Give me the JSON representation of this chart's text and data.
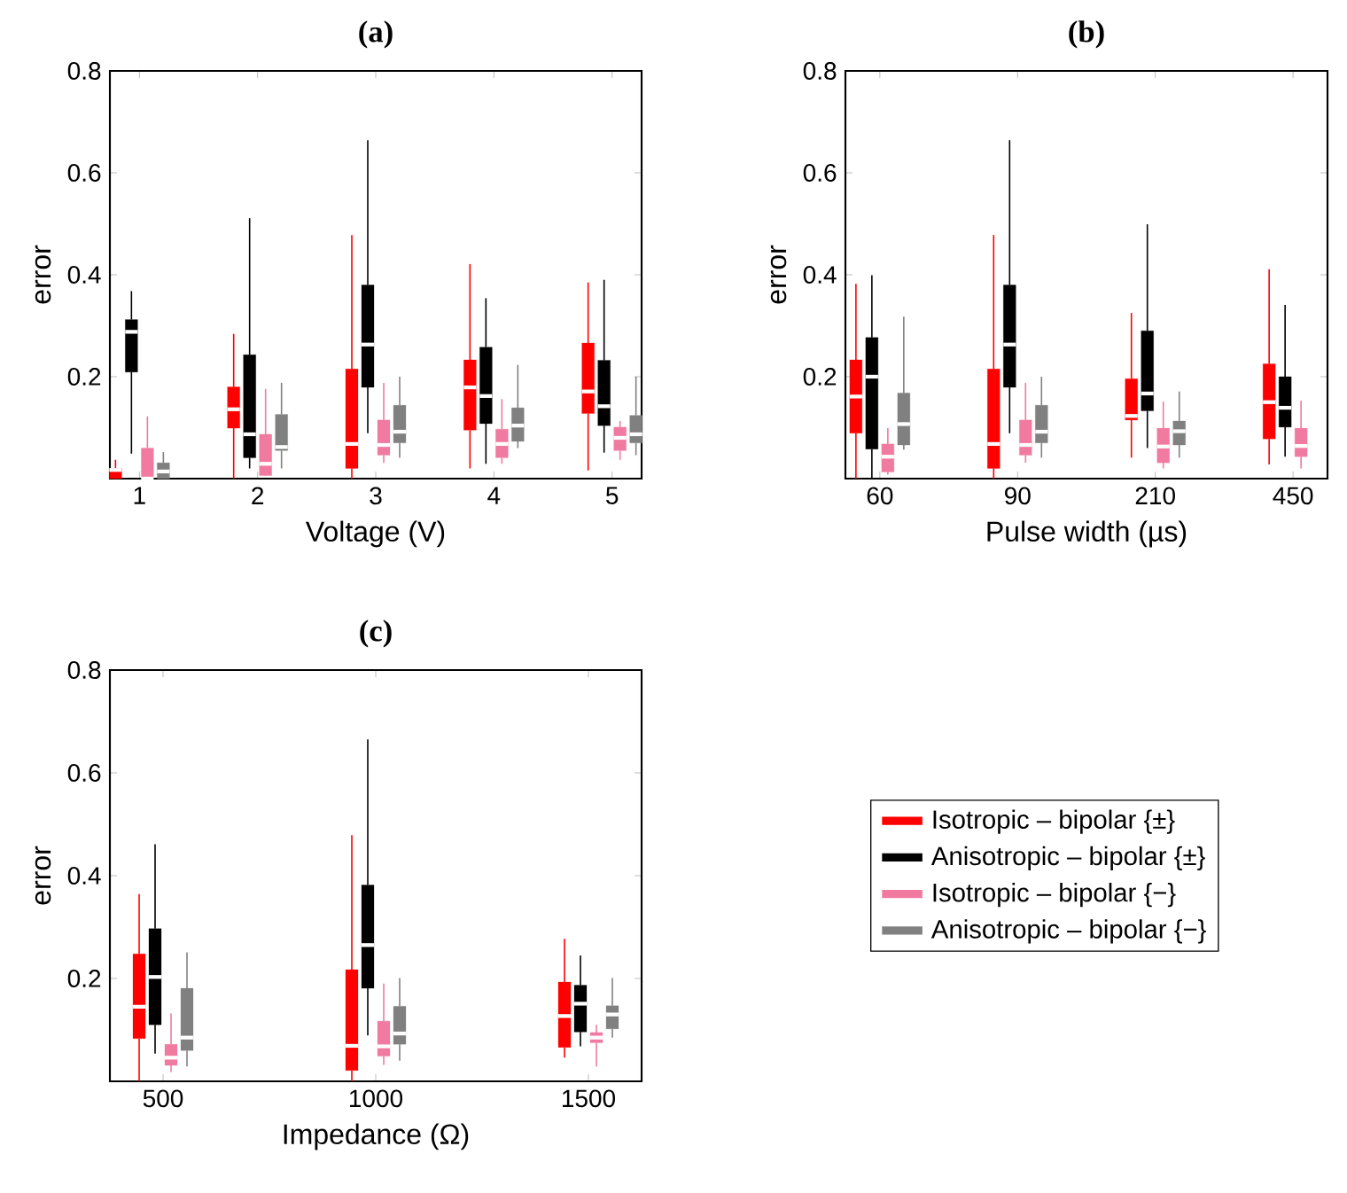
{
  "chart_data": [
    {
      "type": "box",
      "title": "(a)",
      "xlabel": "Voltage (V)",
      "ylabel": "error",
      "categories": [
        "1",
        "2",
        "3",
        "4",
        "5"
      ],
      "ylim": [
        0,
        0.8
      ],
      "yticks": [
        0.2,
        0.4,
        0.6,
        0.8
      ],
      "series": [
        {
          "color": "#ff0000",
          "boxes": [
            {
              "low": 0,
              "q1": 0,
              "median": 0.017,
              "q3": 0.02,
              "high": 0.037
            },
            {
              "low": 0,
              "q1": 0.099,
              "median": 0.136,
              "q3": 0.18,
              "high": 0.284
            },
            {
              "low": 0,
              "q1": 0.02,
              "median": 0.068,
              "q3": 0.215,
              "high": 0.478
            },
            {
              "low": 0.02,
              "q1": 0.095,
              "median": 0.179,
              "q3": 0.233,
              "high": 0.421
            },
            {
              "low": 0.016,
              "q1": 0.128,
              "median": 0.171,
              "q3": 0.266,
              "high": 0.385
            }
          ]
        },
        {
          "color": "#000000",
          "boxes": [
            {
              "low": 0.049,
              "q1": 0.209,
              "median": 0.288,
              "q3": 0.312,
              "high": 0.368
            },
            {
              "low": 0.02,
              "q1": 0.041,
              "median": 0.087,
              "q3": 0.243,
              "high": 0.511
            },
            {
              "low": 0.089,
              "q1": 0.179,
              "median": 0.263,
              "q3": 0.38,
              "high": 0.664
            },
            {
              "low": 0.029,
              "q1": 0.108,
              "median": 0.162,
              "q3": 0.258,
              "high": 0.354
            },
            {
              "low": 0.051,
              "q1": 0.104,
              "median": 0.142,
              "q3": 0.232,
              "high": 0.39
            }
          ]
        },
        {
          "color": "#f07aa0",
          "boxes": [
            {
              "low": 0,
              "q1": 0,
              "median": 0,
              "q3": 0.06,
              "high": 0.122
            },
            {
              "low": 0.005,
              "q1": 0.006,
              "median": 0.029,
              "q3": 0.087,
              "high": 0.176
            },
            {
              "low": 0.031,
              "q1": 0.046,
              "median": 0.066,
              "q3": 0.115,
              "high": 0.188
            },
            {
              "low": 0.029,
              "q1": 0.041,
              "median": 0.068,
              "q3": 0.097,
              "high": 0.156
            },
            {
              "low": 0.037,
              "q1": 0.055,
              "median": 0.08,
              "q3": 0.101,
              "high": 0.113
            }
          ]
        },
        {
          "color": "#808080",
          "boxes": [
            {
              "low": 0,
              "q1": 0,
              "median": 0.014,
              "q3": 0.031,
              "high": 0.052
            },
            {
              "low": 0.02,
              "q1": 0.055,
              "median": 0.062,
              "q3": 0.126,
              "high": 0.188
            },
            {
              "low": 0.041,
              "q1": 0.07,
              "median": 0.092,
              "q3": 0.144,
              "high": 0.2
            },
            {
              "low": 0.06,
              "q1": 0.073,
              "median": 0.104,
              "q3": 0.139,
              "high": 0.223
            },
            {
              "low": 0.046,
              "q1": 0.07,
              "median": 0.087,
              "q3": 0.124,
              "high": 0.2
            }
          ]
        }
      ]
    },
    {
      "type": "box",
      "title": "(b)",
      "xlabel": "Pulse width (µs)",
      "ylabel": "error",
      "categories": [
        "60",
        "90",
        "210",
        "450"
      ],
      "ylim": [
        0,
        0.8
      ],
      "yticks": [
        0.2,
        0.4,
        0.6,
        0.8
      ],
      "series": [
        {
          "color": "#ff0000",
          "boxes": [
            {
              "low": 0,
              "q1": 0.089,
              "median": 0.161,
              "q3": 0.233,
              "high": 0.382
            },
            {
              "low": 0,
              "q1": 0.02,
              "median": 0.068,
              "q3": 0.215,
              "high": 0.478
            },
            {
              "low": 0.041,
              "q1": 0.115,
              "median": 0.123,
              "q3": 0.196,
              "high": 0.325
            },
            {
              "low": 0.028,
              "q1": 0.078,
              "median": 0.15,
              "q3": 0.225,
              "high": 0.411
            }
          ]
        },
        {
          "color": "#000000",
          "boxes": [
            {
              "low": 0,
              "q1": 0.058,
              "median": 0.2,
              "q3": 0.277,
              "high": 0.399
            },
            {
              "low": 0.089,
              "q1": 0.179,
              "median": 0.263,
              "q3": 0.38,
              "high": 0.664
            },
            {
              "low": 0.06,
              "q1": 0.133,
              "median": 0.167,
              "q3": 0.29,
              "high": 0.499
            },
            {
              "low": 0.043,
              "q1": 0.101,
              "median": 0.139,
              "q3": 0.2,
              "high": 0.341
            }
          ]
        },
        {
          "color": "#f07aa0",
          "boxes": [
            {
              "low": 0.008,
              "q1": 0.013,
              "median": 0.043,
              "q3": 0.068,
              "high": 0.099
            },
            {
              "low": 0.031,
              "q1": 0.046,
              "median": 0.066,
              "q3": 0.115,
              "high": 0.188
            },
            {
              "low": 0.02,
              "q1": 0.031,
              "median": 0.063,
              "q3": 0.099,
              "high": 0.151
            },
            {
              "low": 0.02,
              "q1": 0.043,
              "median": 0.064,
              "q3": 0.099,
              "high": 0.153
            }
          ]
        },
        {
          "color": "#808080",
          "boxes": [
            {
              "low": 0.057,
              "q1": 0.066,
              "median": 0.107,
              "q3": 0.168,
              "high": 0.318
            },
            {
              "low": 0.041,
              "q1": 0.07,
              "median": 0.092,
              "q3": 0.144,
              "high": 0.2
            },
            {
              "low": 0.041,
              "q1": 0.066,
              "median": 0.093,
              "q3": 0.113,
              "high": 0.171
            },
            null
          ]
        }
      ]
    },
    {
      "type": "box",
      "title": "(c)",
      "xlabel": "Impedance (Ω)",
      "ylabel": "error",
      "categories": [
        "500",
        "1000",
        "1500"
      ],
      "ylim": [
        0,
        0.8
      ],
      "yticks": [
        0.2,
        0.4,
        0.6,
        0.8
      ],
      "legend": "right",
      "series": [
        {
          "name": "Isotropic – bipolar {±}",
          "color": "#ff0000",
          "boxes": [
            {
              "low": 0,
              "q1": 0.083,
              "median": 0.145,
              "q3": 0.248,
              "high": 0.364
            },
            {
              "low": 0,
              "q1": 0.021,
              "median": 0.069,
              "q3": 0.217,
              "high": 0.479
            },
            {
              "low": 0.046,
              "q1": 0.066,
              "median": 0.127,
              "q3": 0.193,
              "high": 0.277
            }
          ]
        },
        {
          "name": "Anisotropic – bipolar {±}",
          "color": "#000000",
          "boxes": [
            {
              "low": 0.054,
              "q1": 0.11,
              "median": 0.203,
              "q3": 0.297,
              "high": 0.461
            },
            {
              "low": 0.089,
              "q1": 0.181,
              "median": 0.265,
              "q3": 0.382,
              "high": 0.665
            },
            {
              "low": 0.068,
              "q1": 0.096,
              "median": 0.151,
              "q3": 0.187,
              "high": 0.245
            }
          ]
        },
        {
          "name": "Isotropic – bipolar {−}",
          "color": "#f07aa0",
          "boxes": [
            {
              "low": 0.018,
              "q1": 0.031,
              "median": 0.046,
              "q3": 0.072,
              "high": 0.132
            },
            {
              "low": 0.032,
              "q1": 0.049,
              "median": 0.068,
              "q3": 0.117,
              "high": 0.19
            },
            {
              "low": 0.029,
              "q1": 0.075,
              "median": 0.085,
              "q3": 0.095,
              "high": 0.11
            }
          ]
        },
        {
          "name": "Anisotropic – bipolar {−}",
          "color": "#808080",
          "boxes": [
            {
              "low": 0.029,
              "q1": 0.06,
              "median": 0.085,
              "q3": 0.181,
              "high": 0.251
            },
            {
              "low": 0.04,
              "q1": 0.072,
              "median": 0.093,
              "q3": 0.146,
              "high": 0.201
            },
            {
              "low": 0.085,
              "q1": 0.102,
              "median": 0.13,
              "q3": 0.147,
              "high": 0.201
            }
          ]
        }
      ]
    }
  ]
}
